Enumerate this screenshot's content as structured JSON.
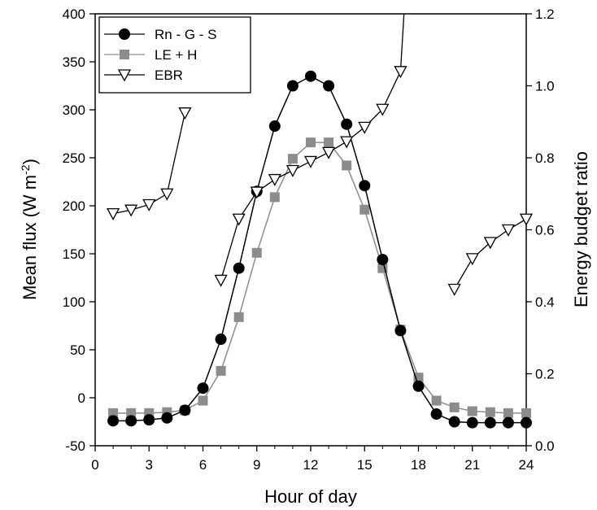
{
  "chart_data": {
    "type": "line",
    "xlabel": "Hour of day",
    "ylabel_left": {
      "main": "Mean flux (W m",
      "sup": "-2",
      "close": ")"
    },
    "ylabel_right": "Energy budget ratio",
    "xlim": [
      0,
      24
    ],
    "ylim_left": [
      -50,
      400
    ],
    "ylim_right": [
      0.0,
      1.2
    ],
    "x_ticks": [
      0,
      3,
      6,
      9,
      12,
      15,
      18,
      21,
      24
    ],
    "y_left_ticks": [
      -50,
      0,
      50,
      100,
      150,
      200,
      250,
      300,
      350,
      400
    ],
    "y_right_ticks": [
      "0.0",
      "0.2",
      "0.4",
      "0.6",
      "0.8",
      "1.0",
      "1.2"
    ],
    "grid": false,
    "legend_position": "top-left",
    "series": [
      {
        "name": "Rn - G - S",
        "axis": "left",
        "marker": "circle",
        "color": "#000000",
        "x": [
          1,
          2,
          3,
          4,
          5,
          6,
          7,
          8,
          9,
          10,
          11,
          12,
          13,
          14,
          15,
          16,
          17,
          18,
          19,
          20,
          21,
          22,
          23,
          24
        ],
        "values": [
          -24,
          -24,
          -23,
          -21,
          -13,
          10,
          61,
          135,
          215,
          283,
          325,
          335,
          325,
          285,
          221,
          144,
          70,
          12,
          -17,
          -25,
          -26,
          -26,
          -26,
          -26
        ]
      },
      {
        "name": "LE + H",
        "axis": "left",
        "marker": "square",
        "color": "#8c8c8c",
        "x": [
          1,
          2,
          3,
          4,
          5,
          6,
          7,
          8,
          9,
          10,
          11,
          12,
          13,
          14,
          15,
          16,
          17,
          18,
          19,
          20,
          21,
          22,
          23,
          24
        ],
        "values": [
          -16,
          -16,
          -16,
          -15,
          -13,
          -3,
          28,
          84,
          151,
          209,
          249,
          266,
          266,
          242,
          196,
          135,
          71,
          21,
          -3,
          -10,
          -14,
          -15,
          -16,
          -16
        ]
      },
      {
        "name": "EBR",
        "axis": "right",
        "marker": "triangle-down-open",
        "color": "#000000",
        "segments": [
          {
            "x": [
              1,
              2,
              3,
              4,
              5
            ],
            "values": [
              0.645,
              0.655,
              0.67,
              0.7,
              0.925
            ]
          },
          {
            "x": [
              7,
              8,
              9,
              10,
              11,
              12,
              13,
              14,
              15,
              16,
              17,
              17.2
            ],
            "values": [
              0.46,
              0.63,
              0.705,
              0.74,
              0.765,
              0.79,
              0.815,
              0.845,
              0.885,
              0.935,
              1.04,
              1.205
            ]
          },
          {
            "x": [
              20,
              21,
              22,
              23,
              24
            ],
            "values": [
              0.435,
              0.52,
              0.565,
              0.6,
              0.63
            ]
          }
        ]
      }
    ]
  }
}
